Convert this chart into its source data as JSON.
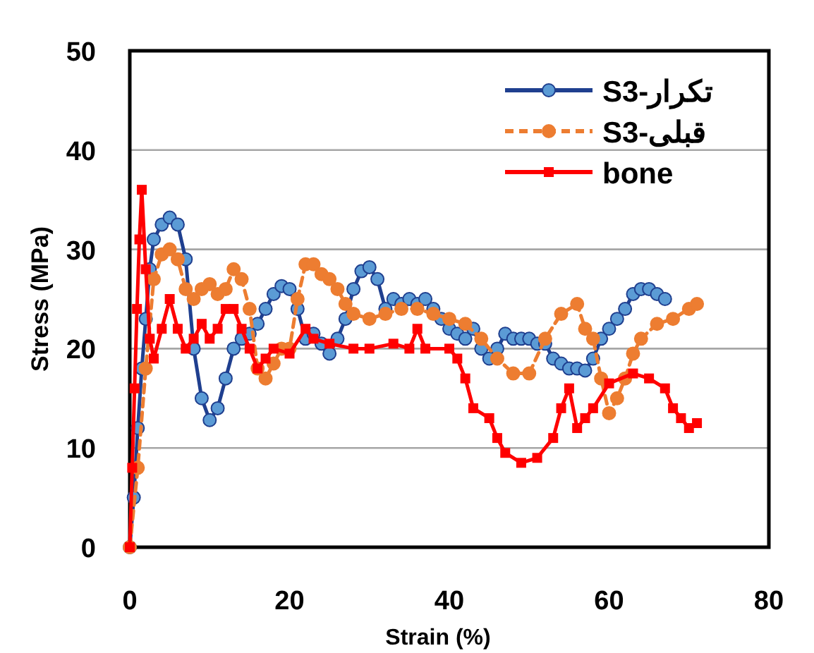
{
  "chart_data": {
    "type": "line",
    "xlabel": "Strain (%)",
    "ylabel": "Stress (MPa)",
    "xlim": [
      0,
      80
    ],
    "ylim": [
      0,
      50
    ],
    "xticks": [
      0,
      20,
      40,
      60,
      80
    ],
    "yticks": [
      0,
      10,
      20,
      30,
      40,
      50
    ],
    "grid": "y",
    "legend": "top right",
    "series": [
      {
        "name": "S3-تکرار",
        "color": "#1f3f8f",
        "marker": "circle",
        "line_style": "solid",
        "x": [
          0,
          0.5,
          1,
          1.5,
          2,
          2.5,
          3,
          4,
          5,
          6,
          7,
          8,
          9,
          10,
          11,
          12,
          13,
          14,
          15,
          16,
          17,
          18,
          19,
          20,
          21,
          22,
          23,
          24,
          25,
          26,
          27,
          28,
          29,
          30,
          31,
          32,
          33,
          34,
          35,
          36,
          37,
          38,
          39,
          40,
          41,
          42,
          43,
          44,
          45,
          46,
          47,
          48,
          49,
          50,
          51,
          52,
          53,
          54,
          55,
          56,
          57,
          58,
          59,
          60,
          61,
          62,
          63,
          64,
          65,
          66,
          67
        ],
        "values": [
          0,
          5,
          12,
          18,
          23,
          28,
          31,
          32.5,
          33.2,
          32.5,
          29,
          20,
          15,
          12.8,
          14,
          17,
          20,
          21,
          21.5,
          22.5,
          24,
          25.5,
          26.3,
          26,
          24,
          21,
          21.5,
          20.5,
          19.5,
          21,
          23,
          26,
          27.8,
          28.2,
          27,
          24,
          25,
          24.5,
          25,
          24.5,
          25,
          24,
          23,
          22,
          21.5,
          21,
          22,
          20,
          19,
          20,
          21.5,
          21,
          21,
          21,
          20.5,
          20.5,
          19,
          18.5,
          18,
          18,
          17.8,
          19,
          21,
          22,
          23,
          24,
          25.5,
          26,
          26,
          25.5,
          25
        ]
      },
      {
        "name": "S3-قبلی",
        "color": "#ed7d31",
        "marker": "circle",
        "line_style": "dashed",
        "x": [
          0,
          1,
          2,
          3,
          4,
          5,
          6,
          7,
          8,
          9,
          10,
          11,
          12,
          13,
          14,
          15,
          16,
          17,
          18,
          19,
          20,
          21,
          22,
          23,
          24,
          25,
          26,
          27,
          28,
          30,
          32,
          34,
          36,
          38,
          40,
          42,
          44,
          46,
          48,
          50,
          52,
          54,
          56,
          57,
          58,
          59,
          60,
          61,
          62,
          63,
          64,
          66,
          68,
          70,
          71
        ],
        "values": [
          0,
          8,
          18,
          27,
          29.5,
          30,
          29,
          26,
          25,
          26,
          26.5,
          25.5,
          26,
          28,
          27,
          24,
          18,
          17,
          18.5,
          20,
          20,
          25,
          28.5,
          28.5,
          27.5,
          27,
          26,
          24.5,
          23.5,
          23,
          23.5,
          24,
          24,
          23.5,
          23,
          22.5,
          21,
          19,
          17.5,
          17.5,
          21,
          23.5,
          24.5,
          22,
          21,
          17,
          13.5,
          15,
          17,
          19.5,
          21,
          22.5,
          23,
          24,
          24.5
        ]
      },
      {
        "name": "bone",
        "color": "#ff0000",
        "marker": "square",
        "line_style": "solid",
        "x": [
          0,
          0.3,
          0.6,
          0.9,
          1.2,
          1.5,
          2,
          2.5,
          3,
          4,
          5,
          6,
          7,
          8,
          9,
          10,
          11,
          12,
          13,
          14,
          15,
          16,
          17,
          18,
          20,
          22,
          23,
          25,
          28,
          30,
          33,
          35,
          36,
          37,
          40,
          41,
          42,
          43,
          45,
          46,
          47,
          49,
          51,
          53,
          54,
          55,
          56,
          57,
          58,
          60,
          63,
          65,
          67,
          68,
          69,
          70,
          71
        ],
        "values": [
          0,
          8,
          16,
          24,
          31,
          36,
          28,
          21,
          19,
          22,
          25,
          22,
          20,
          21,
          22.5,
          21,
          22,
          24,
          24,
          22,
          20,
          18,
          19,
          20,
          19.5,
          22,
          21,
          20.5,
          20,
          20,
          20.5,
          20,
          22,
          20,
          20,
          19,
          17,
          14,
          13,
          11,
          9.5,
          8.5,
          9,
          11,
          14,
          16,
          12,
          13,
          14,
          16.5,
          17.5,
          17,
          16,
          14,
          13,
          12,
          12.5
        ]
      }
    ]
  }
}
